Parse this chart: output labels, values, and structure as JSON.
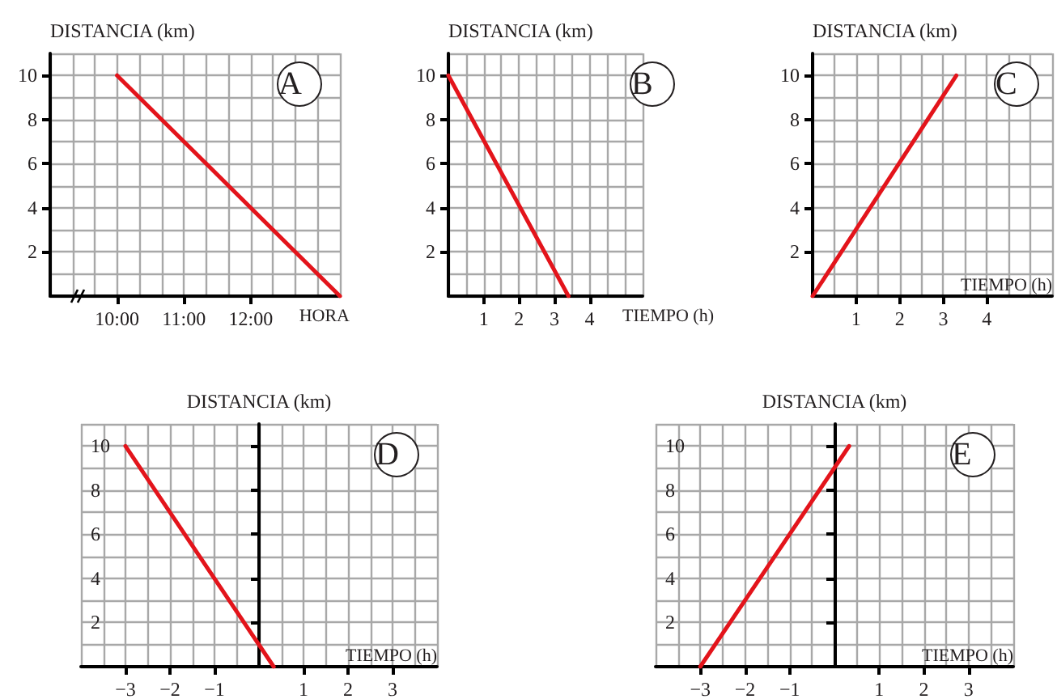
{
  "chart_data": [
    {
      "type": "line",
      "annotations": [
        "A"
      ],
      "xlabel": "HORA",
      "ylabel": "DISTANCIA (km)",
      "x": [
        10,
        13.333
      ],
      "values": [
        10,
        0
      ],
      "color": "#e3141b",
      "xlim": [
        9,
        13.333
      ],
      "ylim": [
        0,
        11
      ],
      "xticks": [
        {
          "value": 10,
          "label": "10:00"
        },
        {
          "value": 11,
          "label": "11:00"
        },
        {
          "value": 12,
          "label": "12:00"
        }
      ],
      "yticks": [
        2,
        4,
        6,
        8,
        10
      ],
      "grid": true
    },
    {
      "type": "line",
      "annotations": [
        "B"
      ],
      "xlabel": "TIEMPO (h)",
      "ylabel": "DISTANCIA (km)",
      "x": [
        0,
        3.4
      ],
      "values": [
        10,
        0
      ],
      "color": "#e3141b",
      "xlim": [
        0,
        5.5
      ],
      "ylim": [
        0,
        11
      ],
      "xticks": [
        1,
        2,
        3,
        4
      ],
      "yticks": [
        2,
        4,
        6,
        8,
        10
      ],
      "grid": true
    },
    {
      "type": "line",
      "annotations": [
        "C"
      ],
      "xlabel": "TIEMPO (h)",
      "ylabel": "DISTANCIA (km)",
      "x": [
        0,
        3.3
      ],
      "values": [
        0,
        10
      ],
      "color": "#e3141b",
      "xlim": [
        0,
        5.5
      ],
      "ylim": [
        0,
        11
      ],
      "xticks": [
        1,
        2,
        3,
        4
      ],
      "yticks": [
        2,
        4,
        6,
        8,
        10
      ],
      "grid": true
    },
    {
      "type": "line",
      "annotations": [
        "D"
      ],
      "xlabel": "TIEMPO (h)",
      "ylabel": "DISTANCIA (km)",
      "x": [
        -3,
        0.33
      ],
      "values": [
        10,
        0
      ],
      "color": "#e3141b",
      "xlim": [
        -4,
        4
      ],
      "ylim": [
        0,
        11
      ],
      "xticks": [
        {
          "value": -3,
          "label": "−3"
        },
        {
          "value": -2,
          "label": "−2"
        },
        {
          "value": -1,
          "label": "−1"
        },
        1,
        2,
        3
      ],
      "yticks": [
        2,
        4,
        6,
        8,
        10
      ],
      "grid": true
    },
    {
      "type": "line",
      "annotations": [
        "E"
      ],
      "xlabel": "TIEMPO (h)",
      "ylabel": "DISTANCIA (km)",
      "x": [
        -3,
        0.33
      ],
      "values": [
        0,
        10
      ],
      "color": "#e3141b",
      "xlim": [
        -4,
        4
      ],
      "ylim": [
        0,
        11
      ],
      "xticks": [
        {
          "value": -3,
          "label": "−3"
        },
        {
          "value": -2,
          "label": "−2"
        },
        {
          "value": -1,
          "label": "−1"
        },
        1,
        2,
        3
      ],
      "yticks": [
        2,
        4,
        6,
        8,
        10
      ],
      "grid": true
    }
  ]
}
